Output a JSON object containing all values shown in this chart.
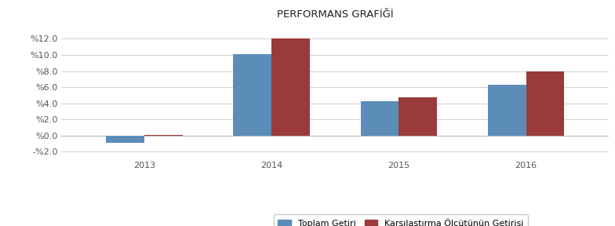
{
  "title": "PERFORMANS GRAFİĞİ",
  "years": [
    2013,
    2014,
    2015,
    2016
  ],
  "toplam_getiri": [
    -0.9,
    10.1,
    4.3,
    6.3
  ],
  "karsılastırma": [
    0.1,
    12.0,
    4.7,
    8.0
  ],
  "bar_color_blue": "#5B8DB8",
  "bar_color_red": "#9B3A3A",
  "background_color": "#FFFFFF",
  "grid_color": "#D0D0D0",
  "yticks": [
    -2,
    0,
    2,
    4,
    6,
    8,
    10,
    12
  ],
  "ylim": [
    -2.8,
    14.0
  ],
  "legend_label_blue": "Toplam Getiri",
  "legend_label_red": "Karşılaştırma Ölçütünün Getirisi",
  "bar_width": 0.3,
  "title_fontsize": 9.5,
  "tick_fontsize": 8,
  "legend_fontsize": 8
}
